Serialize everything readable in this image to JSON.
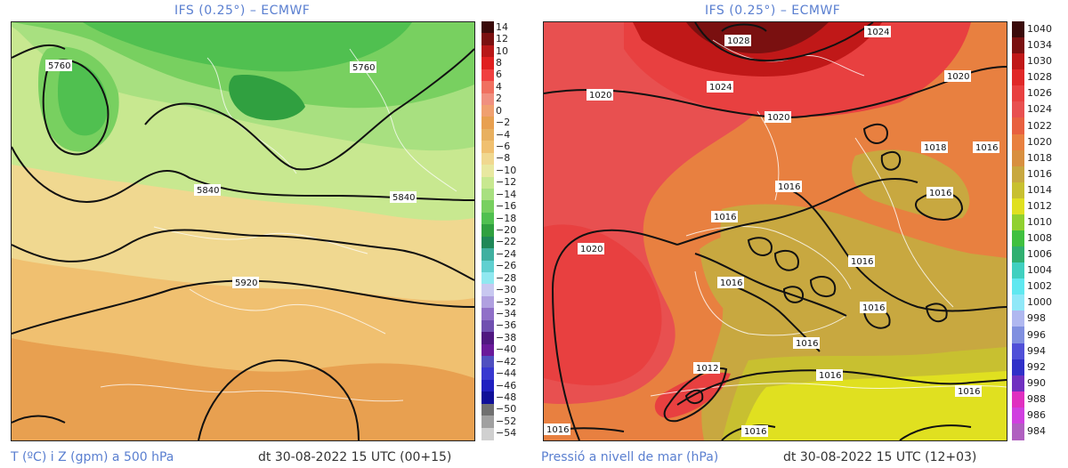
{
  "left_panel": {
    "title": "IFS (0.25°) – ECMWF",
    "footer_left": "T (ºC) i Z (gpm) a 500 hPa",
    "footer_right": "dt 30-08-2022 15 UTC (00+15)",
    "contour_labels": [
      "5760",
      "5760",
      "5840",
      "5840",
      "5920"
    ],
    "colorbar": {
      "labels": [
        "14",
        "12",
        "10",
        "8",
        "6",
        "4",
        "2",
        "0",
        "−2",
        "−4",
        "−6",
        "−8",
        "−10",
        "−12",
        "−14",
        "−16",
        "−18",
        "−20",
        "−22",
        "−24",
        "−26",
        "−28",
        "−30",
        "−32",
        "−34",
        "−36",
        "−38",
        "−40",
        "−42",
        "−44",
        "−46",
        "−48",
        "−50",
        "−52",
        "−54"
      ],
      "colors": [
        "#3a0a0a",
        "#7a1010",
        "#b81818",
        "#e02020",
        "#f04040",
        "#f07060",
        "#f09080",
        "#f0a070",
        "#e8a050",
        "#e8b060",
        "#f0c070",
        "#f0d890",
        "#e8e8a0",
        "#c8e890",
        "#a8e080",
        "#78d060",
        "#50c050",
        "#30a040",
        "#208858",
        "#40b0a0",
        "#60d0d0",
        "#90e8f0",
        "#c8c8f0",
        "#b0a0e0",
        "#9070c8",
        "#7050b0",
        "#501880",
        "#6a1a9a",
        "#5050c0",
        "#3838d0",
        "#2020c0",
        "#101098",
        "#707070",
        "#a0a0a0",
        "#d0d0d0"
      ]
    }
  },
  "right_panel": {
    "title": "IFS (0.25°) – ECMWF",
    "footer_left": "Pressió a nivell de mar (hPa)",
    "footer_right": "dt 30-08-2022 15 UTC (12+03)",
    "contour_labels": [
      "1028",
      "1024",
      "1024",
      "1020",
      "1020",
      "1020",
      "1018",
      "1016",
      "1016",
      "1016",
      "1016",
      "1016",
      "1016",
      "1016",
      "1016",
      "1016",
      "1016",
      "1020",
      "1012",
      "1016",
      "1016"
    ],
    "colorbar": {
      "labels": [
        "1040",
        "1034",
        "1030",
        "1028",
        "1026",
        "1024",
        "1022",
        "1020",
        "1018",
        "1016",
        "1014",
        "1012",
        "1010",
        "1008",
        "1006",
        "1004",
        "1002",
        "1000",
        "998",
        "996",
        "994",
        "992",
        "990",
        "988",
        "986",
        "984"
      ],
      "colors": [
        "#3a0a0a",
        "#7a1010",
        "#c01818",
        "#e02828",
        "#e84040",
        "#e85050",
        "#e86040",
        "#e88040",
        "#d89040",
        "#c8a840",
        "#c8c030",
        "#e0e020",
        "#90d030",
        "#40c040",
        "#30b070",
        "#40d0c0",
        "#60e8f0",
        "#90e8f8",
        "#b0b8f0",
        "#8090e0",
        "#5050d8",
        "#3030c8",
        "#7030c0",
        "#e030c0",
        "#d040e0",
        "#b060c0"
      ]
    }
  }
}
